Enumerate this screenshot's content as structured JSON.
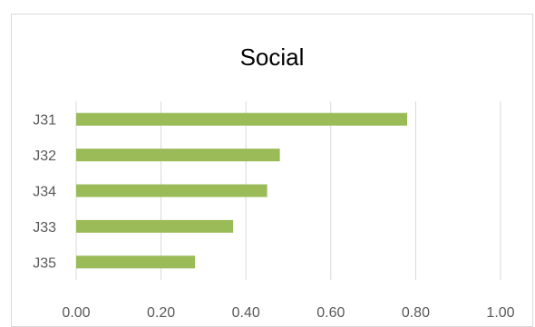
{
  "chart_data": {
    "type": "bar",
    "orientation": "horizontal",
    "title": "Social",
    "categories": [
      "J31",
      "J32",
      "J34",
      "J33",
      "J35"
    ],
    "values": [
      0.78,
      0.48,
      0.45,
      0.37,
      0.28
    ],
    "xlim": [
      0,
      1.0
    ],
    "x_ticks": [
      "0.00",
      "0.20",
      "0.40",
      "0.60",
      "0.80",
      "1.00"
    ],
    "xlabel": "",
    "ylabel": "",
    "grid": "vertical",
    "legend": "none",
    "bar_color": "#9bbb59",
    "gridline_color": "#d9d9d9",
    "border_color": "#d9d9d9",
    "text_color": "#595959",
    "title_color": "#000000"
  }
}
